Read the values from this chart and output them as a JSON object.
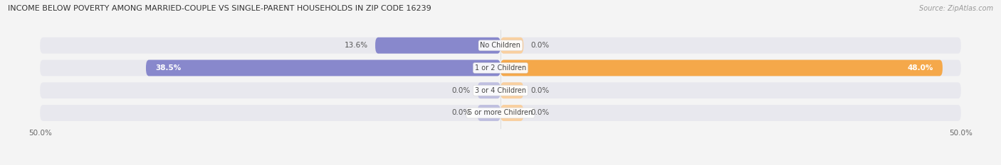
{
  "title": "INCOME BELOW POVERTY AMONG MARRIED-COUPLE VS SINGLE-PARENT HOUSEHOLDS IN ZIP CODE 16239",
  "source": "Source: ZipAtlas.com",
  "categories": [
    "No Children",
    "1 or 2 Children",
    "3 or 4 Children",
    "5 or more Children"
  ],
  "married_values": [
    13.6,
    38.5,
    0.0,
    0.0
  ],
  "single_values": [
    0.0,
    48.0,
    0.0,
    0.0
  ],
  "married_color": "#8888cc",
  "single_color": "#f5a84a",
  "single_color_light": "#f9d0a0",
  "married_color_light": "#c0c0e0",
  "bar_bg_color": "#e8e8ee",
  "axis_limit": 50.0,
  "bar_height": 0.72,
  "figsize": [
    14.06,
    2.33
  ],
  "dpi": 100,
  "bg_color": "#f4f4f4",
  "title_fontsize": 8.0,
  "source_fontsize": 7.0,
  "bar_label_fontsize": 7.5,
  "category_fontsize": 7.0,
  "axis_label_fontsize": 7.5,
  "legend_fontsize": 7.5,
  "small_bar_placeholder": 2.5
}
